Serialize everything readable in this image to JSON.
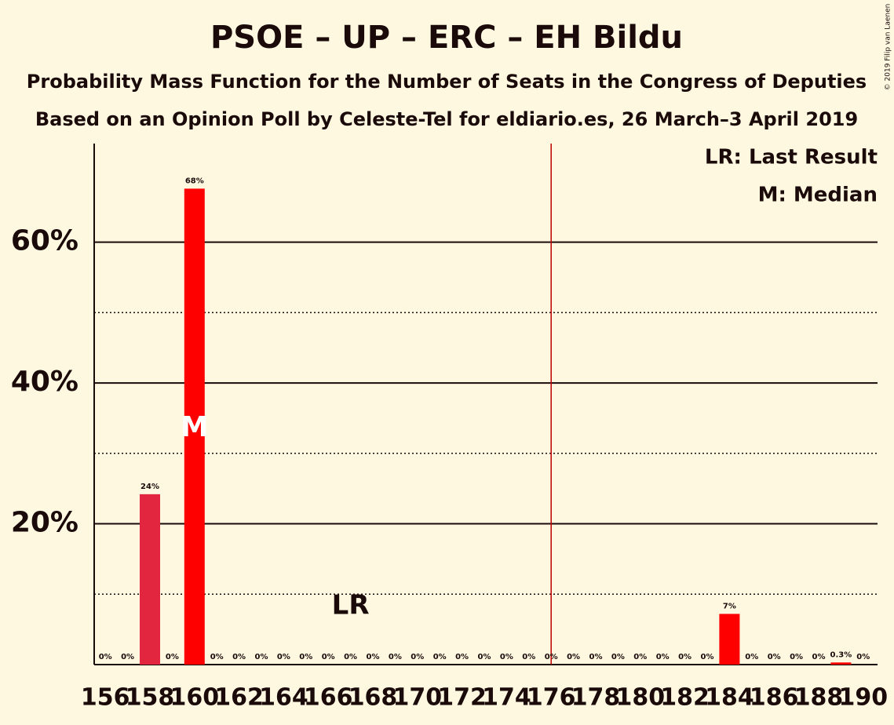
{
  "chart_data": {
    "type": "bar",
    "title": "PSOE – UP – ERC – EH Bildu",
    "subtitle": "Probability Mass Function for the Number of Seats in the Congress of Deputies",
    "subtitle2": "Based on an Opinion Poll by Celeste-Tel for eldiario.es, 26 March–3 April 2019",
    "copyright": "© 2019 Filip van Laenen",
    "legend": [
      "LR: Last Result",
      "M: Median"
    ],
    "categories": [
      "156",
      null,
      "158",
      null,
      "160",
      null,
      "162",
      null,
      "164",
      null,
      "166",
      null,
      "168",
      null,
      "170",
      null,
      "172",
      null,
      "174",
      null,
      "176",
      null,
      "178",
      null,
      "180",
      null,
      "182",
      null,
      "184",
      null,
      "186",
      null,
      "188",
      null,
      "190"
    ],
    "values": [
      0,
      0,
      24.2,
      0,
      67.6,
      0,
      0,
      0,
      0,
      0,
      0,
      0,
      0,
      0,
      0,
      0,
      0,
      0,
      0,
      0,
      0,
      0,
      0,
      0,
      0,
      0,
      0,
      0,
      7.2,
      0,
      0,
      0,
      0,
      0.3,
      0
    ],
    "value_labels": [
      "0%",
      "0%",
      "24%",
      "0%",
      "68%",
      "0%",
      "0%",
      "0%",
      "0%",
      "0%",
      "0%",
      "0%",
      "0%",
      "0%",
      "0%",
      "0%",
      "0%",
      "0%",
      "0%",
      "0%",
      "0%",
      "0%",
      "0%",
      "0%",
      "0%",
      "0%",
      "0%",
      "0%",
      "7%",
      "0%",
      "0%",
      "0%",
      "0%",
      "0.3%",
      "0%"
    ],
    "colors": [
      "#ff0000",
      "#ff0000",
      "#e3263f",
      "#ff0000",
      "#ff0000",
      "#ff0000",
      "#ff0000",
      "#ff0000",
      "#ff0000",
      "#ff0000",
      "#ff0000",
      "#ff0000",
      "#ff0000",
      "#ff0000",
      "#ff0000",
      "#ff0000",
      "#ff0000",
      "#ff0000",
      "#ff0000",
      "#ff0000",
      "#ff0000",
      "#ff0000",
      "#ff0000",
      "#ff0000",
      "#ff0000",
      "#ff0000",
      "#ff0000",
      "#ff0000",
      "#ff0000",
      "#ff0000",
      "#ff0000",
      "#ff0000",
      "#ff0000",
      "#ff0000",
      "#ff0000"
    ],
    "annotations": [
      {
        "text": "M",
        "category": 4
      },
      {
        "text": "LR",
        "category": 11
      }
    ],
    "majority_line": 20,
    "ylim": [
      0,
      74
    ],
    "yticks": [
      {
        "value": 20,
        "label": "20%"
      },
      {
        "value": 40,
        "label": "40%"
      },
      {
        "value": 60,
        "label": "60%"
      }
    ],
    "minor_yticks": [
      10,
      30,
      50
    ],
    "grid": true
  }
}
